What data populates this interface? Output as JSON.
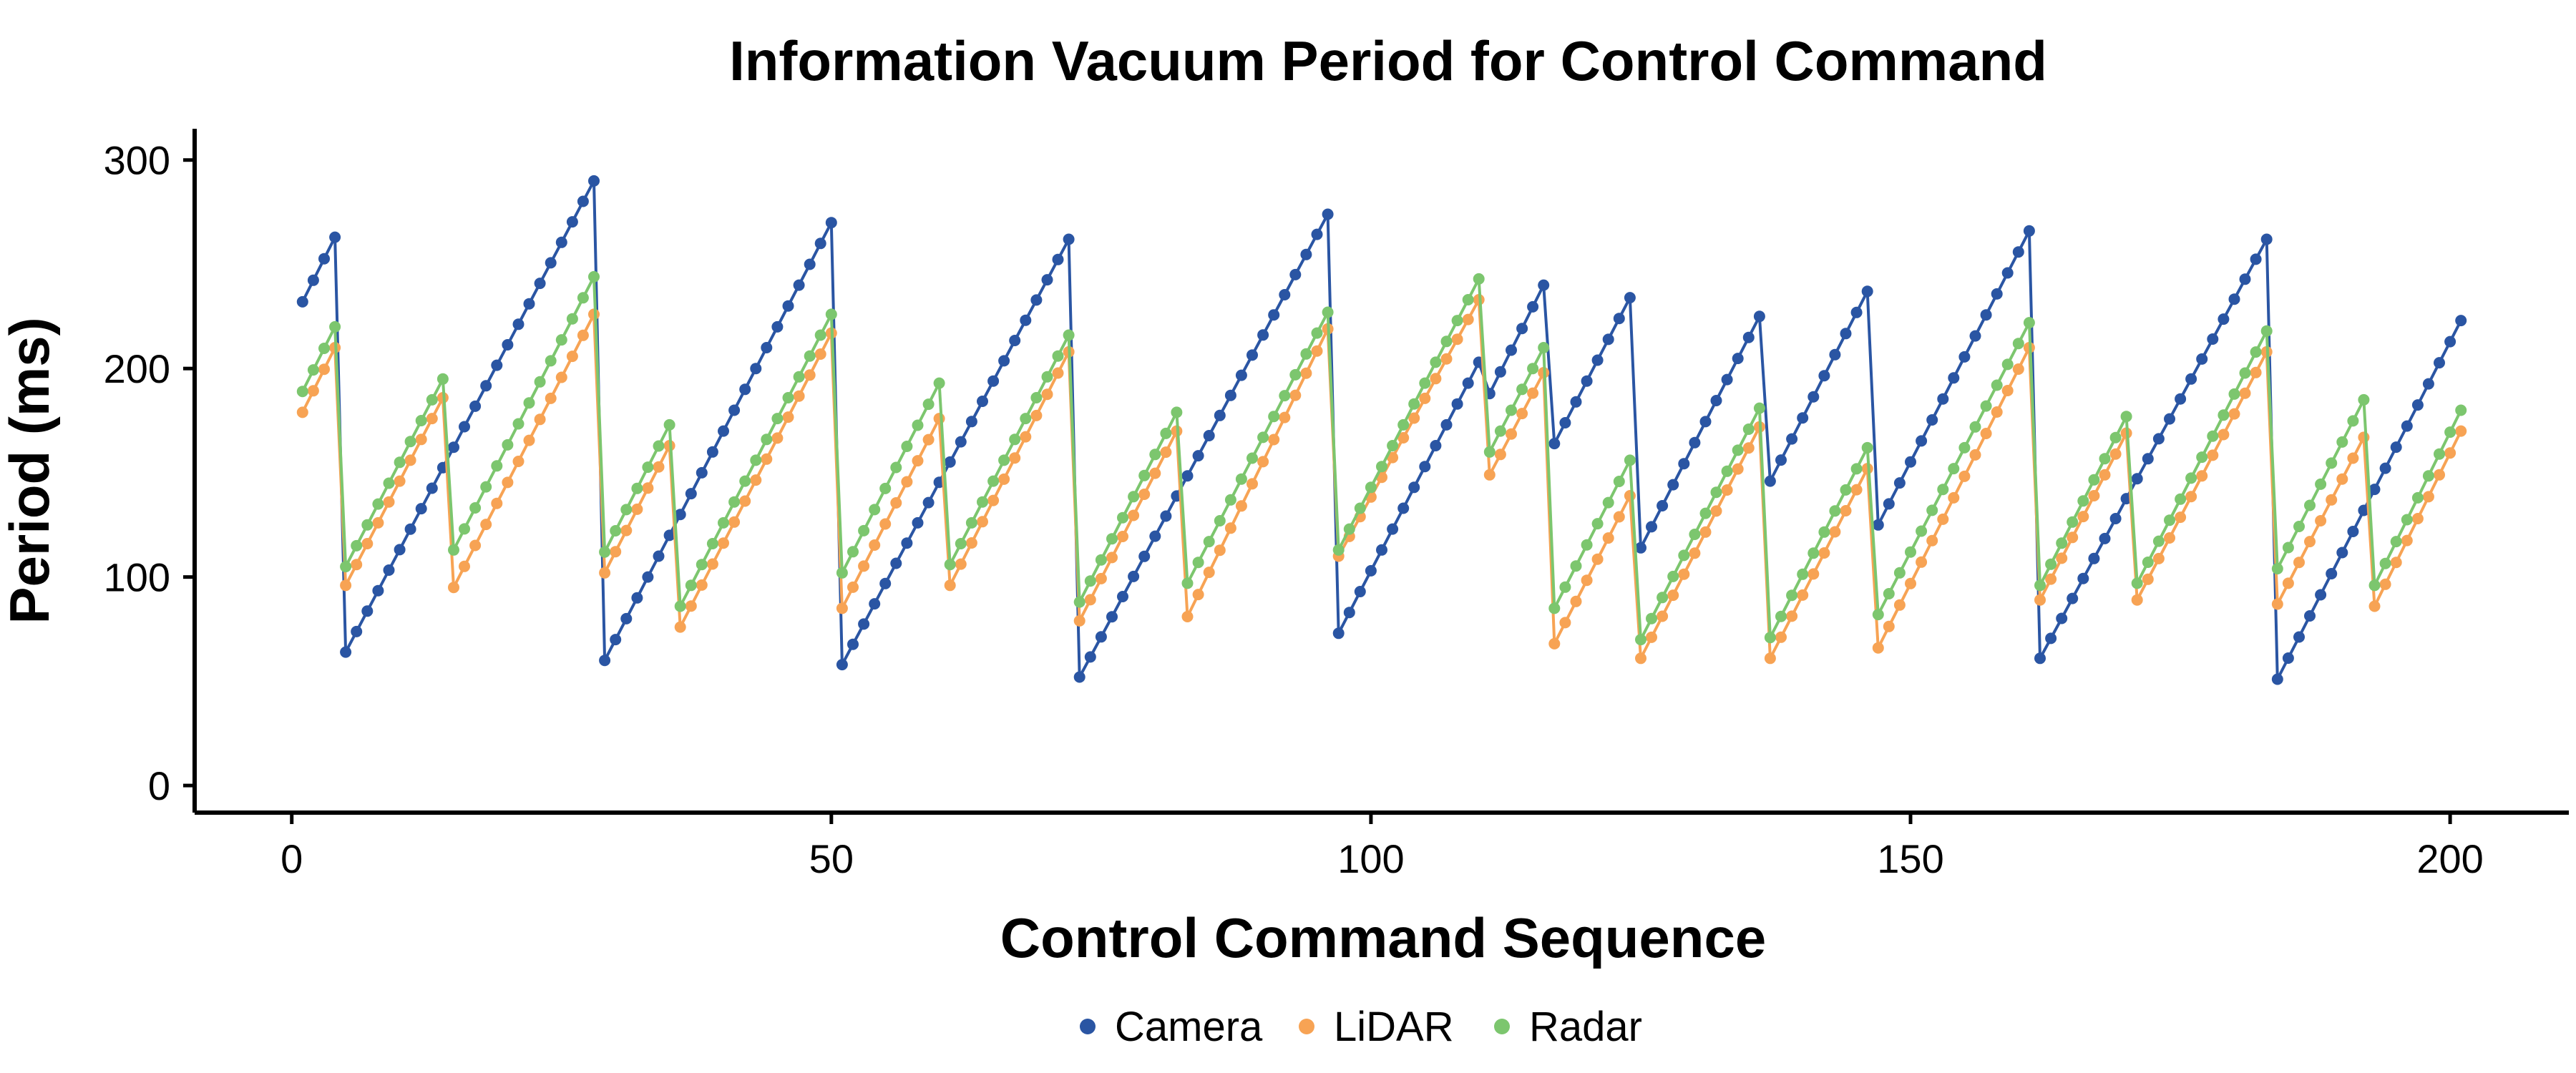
{
  "chart_data": {
    "type": "line",
    "title": "Information Vacuum Period for Control Command",
    "xlabel": "Control Command Sequence",
    "ylabel": "Period (ms)",
    "xlim": [
      -9,
      211
    ],
    "ylim": [
      -13,
      315
    ],
    "x_ticks": [
      0,
      50,
      100,
      150,
      200
    ],
    "x_tick_labels": [
      "0",
      "50",
      "100",
      "150",
      "200"
    ],
    "y_ticks": [
      0,
      100,
      200,
      300
    ],
    "y_tick_labels": [
      "0",
      "100",
      "200",
      "300"
    ],
    "grid": false,
    "legend_position": "bottom",
    "colors": {
      "Camera": "#2a55a3",
      "LiDAR": "#f7a354",
      "Radar": "#7cc66e"
    },
    "series": [
      {
        "name": "Camera",
        "breaks": [
          {
            "x": 1,
            "y": 232
          },
          {
            "x": 4,
            "y": 263
          },
          {
            "x": 5,
            "y": 64
          },
          {
            "x": 28,
            "y": 290
          },
          {
            "x": 29,
            "y": 60
          },
          {
            "x": 50,
            "y": 270
          },
          {
            "x": 51,
            "y": 58
          },
          {
            "x": 72,
            "y": 262
          },
          {
            "x": 73,
            "y": 52
          },
          {
            "x": 96,
            "y": 274
          },
          {
            "x": 97,
            "y": 73
          },
          {
            "x": 110,
            "y": 203
          },
          {
            "x": 111,
            "y": 188
          },
          {
            "x": 116,
            "y": 240
          },
          {
            "x": 117,
            "y": 164
          },
          {
            "x": 124,
            "y": 234
          },
          {
            "x": 125,
            "y": 114
          },
          {
            "x": 136,
            "y": 225
          },
          {
            "x": 137,
            "y": 146
          },
          {
            "x": 146,
            "y": 237
          },
          {
            "x": 147,
            "y": 125
          },
          {
            "x": 161,
            "y": 266
          },
          {
            "x": 162,
            "y": 61
          },
          {
            "x": 183,
            "y": 262
          },
          {
            "x": 184,
            "y": 51
          },
          {
            "x": 201,
            "y": 223
          }
        ]
      },
      {
        "name": "LiDAR",
        "breaks": [
          {
            "x": 1,
            "y": 179
          },
          {
            "x": 4,
            "y": 210
          },
          {
            "x": 5,
            "y": 96
          },
          {
            "x": 14,
            "y": 186
          },
          {
            "x": 15,
            "y": 95
          },
          {
            "x": 28,
            "y": 226
          },
          {
            "x": 29,
            "y": 102
          },
          {
            "x": 35,
            "y": 163
          },
          {
            "x": 36,
            "y": 76
          },
          {
            "x": 50,
            "y": 217
          },
          {
            "x": 51,
            "y": 85
          },
          {
            "x": 60,
            "y": 176
          },
          {
            "x": 61,
            "y": 96
          },
          {
            "x": 72,
            "y": 208
          },
          {
            "x": 73,
            "y": 79
          },
          {
            "x": 82,
            "y": 170
          },
          {
            "x": 83,
            "y": 81
          },
          {
            "x": 96,
            "y": 219
          },
          {
            "x": 97,
            "y": 110
          },
          {
            "x": 110,
            "y": 233
          },
          {
            "x": 111,
            "y": 149
          },
          {
            "x": 116,
            "y": 198
          },
          {
            "x": 117,
            "y": 68
          },
          {
            "x": 124,
            "y": 139
          },
          {
            "x": 125,
            "y": 61
          },
          {
            "x": 136,
            "y": 172
          },
          {
            "x": 137,
            "y": 61
          },
          {
            "x": 146,
            "y": 152
          },
          {
            "x": 147,
            "y": 66
          },
          {
            "x": 161,
            "y": 210
          },
          {
            "x": 162,
            "y": 89
          },
          {
            "x": 170,
            "y": 169
          },
          {
            "x": 171,
            "y": 89
          },
          {
            "x": 183,
            "y": 208
          },
          {
            "x": 184,
            "y": 87
          },
          {
            "x": 192,
            "y": 167
          },
          {
            "x": 193,
            "y": 86
          },
          {
            "x": 201,
            "y": 170
          }
        ]
      },
      {
        "name": "Radar",
        "breaks": [
          {
            "x": 1,
            "y": 189
          },
          {
            "x": 4,
            "y": 220
          },
          {
            "x": 5,
            "y": 105
          },
          {
            "x": 14,
            "y": 195
          },
          {
            "x": 15,
            "y": 113
          },
          {
            "x": 28,
            "y": 244
          },
          {
            "x": 29,
            "y": 112
          },
          {
            "x": 35,
            "y": 173
          },
          {
            "x": 36,
            "y": 86
          },
          {
            "x": 50,
            "y": 226
          },
          {
            "x": 51,
            "y": 102
          },
          {
            "x": 60,
            "y": 193
          },
          {
            "x": 61,
            "y": 106
          },
          {
            "x": 72,
            "y": 216
          },
          {
            "x": 73,
            "y": 88
          },
          {
            "x": 82,
            "y": 179
          },
          {
            "x": 83,
            "y": 97
          },
          {
            "x": 96,
            "y": 227
          },
          {
            "x": 97,
            "y": 113
          },
          {
            "x": 110,
            "y": 243
          },
          {
            "x": 111,
            "y": 160
          },
          {
            "x": 116,
            "y": 210
          },
          {
            "x": 117,
            "y": 85
          },
          {
            "x": 124,
            "y": 156
          },
          {
            "x": 125,
            "y": 70
          },
          {
            "x": 136,
            "y": 181
          },
          {
            "x": 137,
            "y": 71
          },
          {
            "x": 146,
            "y": 162
          },
          {
            "x": 147,
            "y": 82
          },
          {
            "x": 161,
            "y": 222
          },
          {
            "x": 162,
            "y": 96
          },
          {
            "x": 170,
            "y": 177
          },
          {
            "x": 171,
            "y": 97
          },
          {
            "x": 183,
            "y": 218
          },
          {
            "x": 184,
            "y": 104
          },
          {
            "x": 192,
            "y": 185
          },
          {
            "x": 193,
            "y": 96
          },
          {
            "x": 201,
            "y": 180
          }
        ]
      }
    ]
  }
}
